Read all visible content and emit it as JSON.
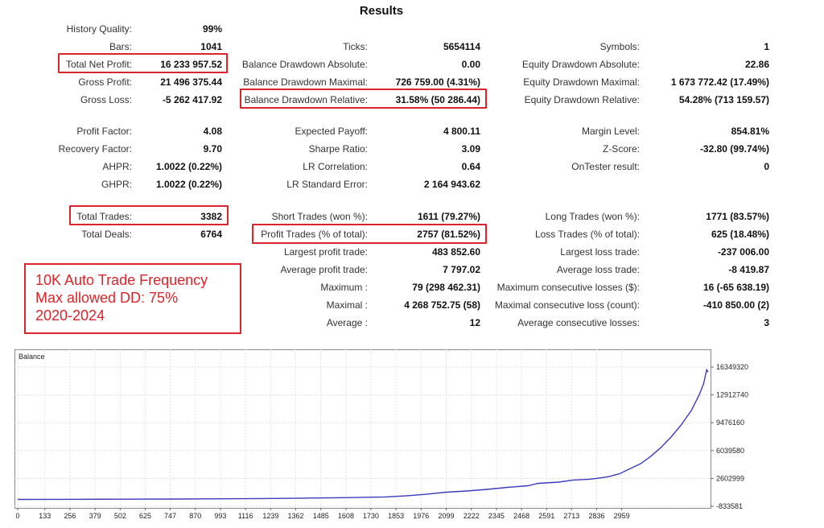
{
  "title": "Results",
  "stats": {
    "history_quality": {
      "label": "History Quality:",
      "value": "99%"
    },
    "bars": {
      "label": "Bars:",
      "value": "1041"
    },
    "ticks": {
      "label": "Ticks:",
      "value": "5654114"
    },
    "symbols": {
      "label": "Symbols:",
      "value": "1"
    },
    "total_net_profit": {
      "label": "Total Net Profit:",
      "value": "16 233 957.52"
    },
    "balance_drawdown_absolute": {
      "label": "Balance Drawdown Absolute:",
      "value": "0.00"
    },
    "equity_drawdown_absolute": {
      "label": "Equity Drawdown Absolute:",
      "value": "22.86"
    },
    "gross_profit": {
      "label": "Gross Profit:",
      "value": "21 496 375.44"
    },
    "balance_drawdown_maximal": {
      "label": "Balance Drawdown Maximal:",
      "value": "726 759.00 (4.31%)"
    },
    "equity_drawdown_maximal": {
      "label": "Equity Drawdown Maximal:",
      "value": "1 673 772.42 (17.49%)"
    },
    "gross_loss": {
      "label": "Gross Loss:",
      "value": "-5 262 417.92"
    },
    "balance_drawdown_relative": {
      "label": "Balance Drawdown Relative:",
      "value": "31.58% (50 286.44)"
    },
    "equity_drawdown_relative": {
      "label": "Equity Drawdown Relative:",
      "value": "54.28% (713 159.57)"
    },
    "profit_factor": {
      "label": "Profit Factor:",
      "value": "4.08"
    },
    "expected_payoff": {
      "label": "Expected Payoff:",
      "value": "4 800.11"
    },
    "margin_level": {
      "label": "Margin Level:",
      "value": "854.81%"
    },
    "recovery_factor": {
      "label": "Recovery Factor:",
      "value": "9.70"
    },
    "sharpe_ratio": {
      "label": "Sharpe Ratio:",
      "value": "3.09"
    },
    "z_score": {
      "label": "Z-Score:",
      "value": "-32.80 (99.74%)"
    },
    "ahpr": {
      "label": "AHPR:",
      "value": "1.0022 (0.22%)"
    },
    "lr_correlation": {
      "label": "LR Correlation:",
      "value": "0.64"
    },
    "ontester_result": {
      "label": "OnTester result:",
      "value": "0"
    },
    "ghpr": {
      "label": "GHPR:",
      "value": "1.0022 (0.22%)"
    },
    "lr_standard_error": {
      "label": "LR Standard Error:",
      "value": "2 164 943.62"
    },
    "total_trades": {
      "label": "Total Trades:",
      "value": "3382"
    },
    "short_trades": {
      "label": "Short Trades (won %):",
      "value": "1611 (79.27%)"
    },
    "long_trades": {
      "label": "Long Trades (won %):",
      "value": "1771 (83.57%)"
    },
    "total_deals": {
      "label": "Total Deals:",
      "value": "6764"
    },
    "profit_trades": {
      "label": "Profit Trades (% of total):",
      "value": "2757 (81.52%)"
    },
    "loss_trades": {
      "label": "Loss Trades (% of total):",
      "value": "625 (18.48%)"
    },
    "largest_profit_trade": {
      "label": "Largest profit trade:",
      "value": "483 852.60"
    },
    "largest_loss_trade": {
      "label": "Largest loss trade:",
      "value": "-237 006.00"
    },
    "average_profit_trade": {
      "label": "Average profit trade:",
      "value": "7 797.02"
    },
    "average_loss_trade": {
      "label": "Average loss trade:",
      "value": "-8 419.87"
    },
    "maximum_consecutive_wins": {
      "label": "Maximum :",
      "value": "79 (298 462.31)"
    },
    "maximum_consecutive_losses": {
      "label": "Maximum consecutive losses ($):",
      "value": "16 (-65 638.19)"
    },
    "maximal_consecutive_profit": {
      "label": "Maximal :",
      "value": "4 268 752.75 (58)"
    },
    "maximal_consecutive_loss": {
      "label": "Maximal consecutive loss (count):",
      "value": "-410 850.00 (2)"
    },
    "average_consecutive_wins": {
      "label": "Average :",
      "value": "12"
    },
    "average_consecutive_losses": {
      "label": "Average consecutive losses:",
      "value": "3"
    }
  },
  "annotation": {
    "line1": "10K Auto Trade Frequency",
    "line2": "Max allowed DD: 75%",
    "line3": "2020-2024"
  },
  "colors": {
    "highlight": "#d9252b",
    "line": "#3b3bbd",
    "annotation_text": "#d9252b"
  },
  "chart_data": {
    "type": "line",
    "title": "Balance",
    "xlabel": "",
    "ylabel": "",
    "x_ticks": [
      "0",
      "133",
      "256",
      "379",
      "502",
      "625",
      "747",
      "870",
      "993",
      "1116",
      "1239",
      "1362",
      "1485",
      "1608",
      "1730",
      "1853",
      "1976",
      "2099",
      "2222",
      "2345",
      "2468",
      "2591",
      "2713",
      "2836",
      "2959"
    ],
    "y_ticks": [
      "16349320",
      "12912740",
      "9476160",
      "6039580",
      "2602999",
      "-833581"
    ],
    "xlim": [
      0,
      3382
    ],
    "ylim": [
      -833581,
      16349320
    ],
    "grid": true,
    "series": [
      {
        "x": [
          0,
          200,
          500,
          800,
          1000,
          1200,
          1400,
          1600,
          1800,
          1900,
          2000,
          2100,
          2200,
          2300,
          2400,
          2500,
          2550,
          2650,
          2720,
          2800,
          2850,
          2900,
          2950,
          3000,
          3050,
          3100,
          3150,
          3200,
          3250,
          3300,
          3340,
          3360,
          3375,
          3382
        ],
        "y": [
          10000,
          20000,
          40000,
          60000,
          90000,
          120000,
          170000,
          230000,
          320000,
          450000,
          650000,
          900000,
          1050000,
          1250000,
          1500000,
          1700000,
          2000000,
          2150000,
          2400000,
          2500000,
          2650000,
          2850000,
          3200000,
          3800000,
          4400000,
          5300000,
          6400000,
          7700000,
          9200000,
          11000000,
          13000000,
          14300000,
          16000000,
          15700000
        ]
      }
    ]
  }
}
